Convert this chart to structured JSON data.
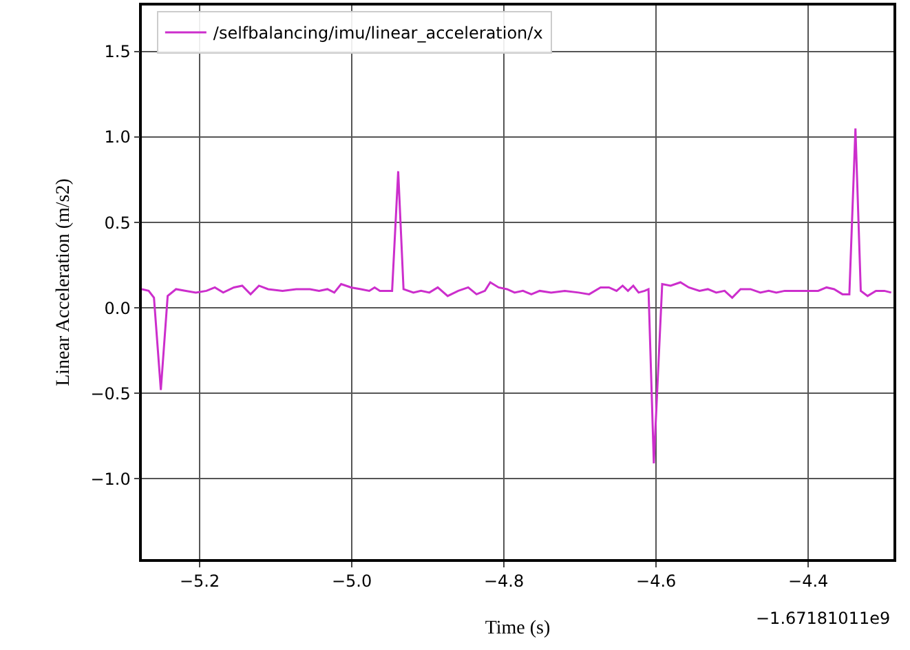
{
  "chart_data": {
    "type": "line",
    "xlabel": "Time (s)",
    "ylabel": "Linear Acceleration (m/s2)",
    "annotations": [
      "−1.67181011e9"
    ],
    "xlim": [
      -5.276,
      -4.288
    ],
    "xticks": [
      {
        "value": -5.2,
        "label": "−5.2"
      },
      {
        "value": -5.0,
        "label": "−5.0"
      },
      {
        "value": -4.8,
        "label": "−4.8"
      },
      {
        "value": -4.6,
        "label": "−4.6"
      },
      {
        "value": -4.4,
        "label": "−4.4"
      }
    ],
    "ylim": [
      -1.47,
      1.77
    ],
    "yticks": [
      {
        "value": -1.0,
        "label": "−1.0"
      },
      {
        "value": -0.5,
        "label": "−0.5"
      },
      {
        "value": 0,
        "label": "0.0"
      },
      {
        "value": 0.5,
        "label": "0.5"
      },
      {
        "value": 1.0,
        "label": "1.0"
      },
      {
        "value": 1.5,
        "label": "1.5"
      }
    ],
    "grid": true,
    "legend": "top left",
    "marker": "none",
    "line_style": "solid",
    "series": [
      {
        "name": "/selfbalancing/imu/linear_acceleration/x",
        "color": "#cc2ecc",
        "x": [
          -5.276,
          -5.267,
          -5.26,
          -5.251,
          -5.242,
          -5.231,
          -5.218,
          -5.205,
          -5.191,
          -5.18,
          -5.169,
          -5.155,
          -5.144,
          -5.133,
          -5.122,
          -5.11,
          -5.091,
          -5.073,
          -5.055,
          -5.043,
          -5.032,
          -5.023,
          -5.014,
          -5.001,
          -4.988,
          -4.977,
          -4.97,
          -4.963,
          -4.957,
          -4.947,
          -4.939,
          -4.932,
          -4.919,
          -4.909,
          -4.898,
          -4.887,
          -4.874,
          -4.86,
          -4.847,
          -4.836,
          -4.825,
          -4.818,
          -4.807,
          -4.796,
          -4.786,
          -4.775,
          -4.764,
          -4.753,
          -4.738,
          -4.72,
          -4.702,
          -4.688,
          -4.673,
          -4.662,
          -4.652,
          -4.644,
          -4.637,
          -4.63,
          -4.623,
          -4.615,
          -4.61,
          -4.603,
          -4.592,
          -4.581,
          -4.568,
          -4.557,
          -4.543,
          -4.532,
          -4.521,
          -4.51,
          -4.5,
          -4.489,
          -4.476,
          -4.463,
          -4.452,
          -4.442,
          -4.431,
          -4.416,
          -4.402,
          -4.387,
          -4.376,
          -4.366,
          -4.355,
          -4.346,
          -4.338,
          -4.331,
          -4.322,
          -4.311,
          -4.3,
          -4.291
        ],
        "values": [
          0.11,
          0.1,
          0.06,
          -0.48,
          0.07,
          0.11,
          0.1,
          0.09,
          0.1,
          0.12,
          0.09,
          0.12,
          0.13,
          0.08,
          0.13,
          0.11,
          0.1,
          0.11,
          0.11,
          0.1,
          0.11,
          0.09,
          0.14,
          0.12,
          0.11,
          0.1,
          0.12,
          0.1,
          0.1,
          0.1,
          0.8,
          0.11,
          0.09,
          0.1,
          0.09,
          0.12,
          0.07,
          0.1,
          0.12,
          0.08,
          0.1,
          0.15,
          0.12,
          0.11,
          0.09,
          0.1,
          0.08,
          0.1,
          0.09,
          0.1,
          0.09,
          0.08,
          0.12,
          0.12,
          0.1,
          0.13,
          0.1,
          0.13,
          0.09,
          0.1,
          0.11,
          -0.91,
          0.14,
          0.13,
          0.15,
          0.12,
          0.1,
          0.11,
          0.09,
          0.1,
          0.06,
          0.11,
          0.11,
          0.09,
          0.1,
          0.09,
          0.1,
          0.1,
          0.1,
          0.1,
          0.12,
          0.11,
          0.08,
          0.08,
          1.05,
          0.1,
          0.07,
          0.1,
          0.1,
          0.09
        ]
      }
    ]
  }
}
